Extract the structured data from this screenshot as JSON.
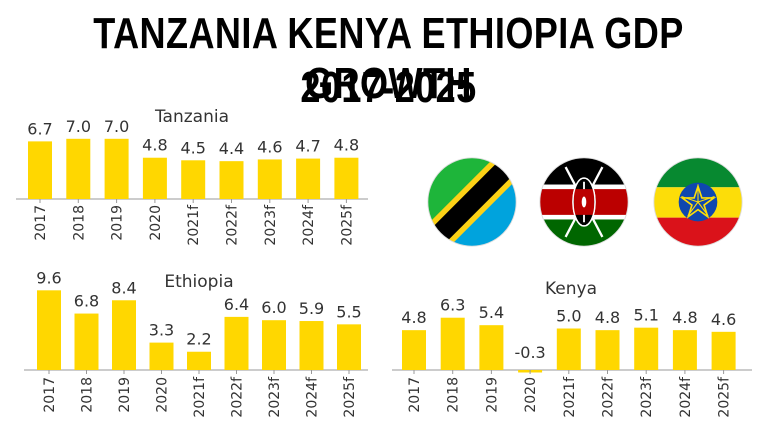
{
  "title_line1": "TANZANIA KENYA ETHIOPIA GDP GROWTH",
  "title_line2": "2017-2025",
  "colors": {
    "bar": "#FFD700",
    "axis": "#999999",
    "text": "#333333"
  },
  "flags": [
    {
      "name": "tanzania-flag-icon"
    },
    {
      "name": "kenya-flag-icon"
    },
    {
      "name": "ethiopia-flag-icon"
    }
  ],
  "chart_data": [
    {
      "type": "bar",
      "title": "Tanzania",
      "categories": [
        "2017",
        "2018",
        "2019",
        "2020",
        "2021f",
        "2022f",
        "2023f",
        "2024f",
        "2025f"
      ],
      "values": [
        6.7,
        7.0,
        7.0,
        4.8,
        4.5,
        4.4,
        4.6,
        4.7,
        4.8
      ],
      "labels": [
        "6.7",
        "7.0",
        "7.0",
        "4.8",
        "4.5",
        "4.4",
        "4.6",
        "4.7",
        "4.8"
      ]
    },
    {
      "type": "bar",
      "title": "Ethiopia",
      "categories": [
        "2017",
        "2018",
        "2019",
        "2020",
        "2021f",
        "2022f",
        "2023f",
        "2024f",
        "2025f"
      ],
      "values": [
        9.6,
        6.8,
        8.4,
        3.3,
        2.2,
        6.4,
        6.0,
        5.9,
        5.5
      ],
      "labels": [
        "9.6",
        "6.8",
        "8.4",
        "3.3",
        "2.2",
        "6.4",
        "6.0",
        "5.9",
        "5.5"
      ]
    },
    {
      "type": "bar",
      "title": "Kenya",
      "categories": [
        "2017",
        "2018",
        "2019",
        "2020",
        "2021f",
        "2022f",
        "2023f",
        "2024f",
        "2025f"
      ],
      "values": [
        4.8,
        6.3,
        5.4,
        -0.3,
        5.0,
        4.8,
        5.1,
        4.8,
        4.6
      ],
      "labels": [
        "4.8",
        "6.3",
        "5.4",
        "-0.3",
        "5.0",
        "4.8",
        "5.1",
        "4.8",
        "4.6"
      ]
    }
  ]
}
